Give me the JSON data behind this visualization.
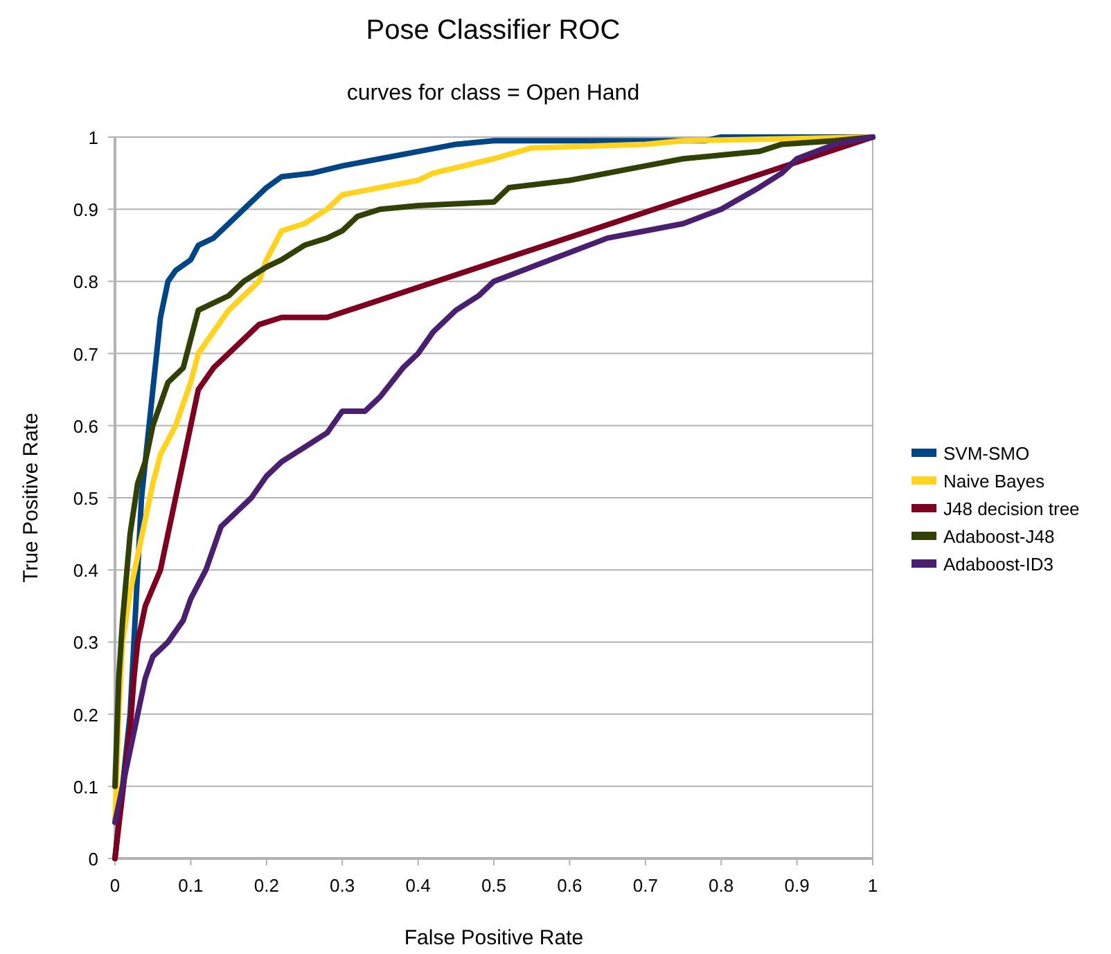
{
  "chart_data": {
    "type": "line",
    "title": "Pose Classifier ROC",
    "subtitle": "curves for class = Open Hand",
    "xlabel": "False Positive Rate",
    "ylabel": "True Positive Rate",
    "xlim": [
      0,
      1
    ],
    "ylim": [
      0,
      1
    ],
    "xticks": [
      0,
      0.1,
      0.2,
      0.3,
      0.4,
      0.5,
      0.6,
      0.7,
      0.8,
      0.9,
      1
    ],
    "yticks": [
      0,
      0.1,
      0.2,
      0.3,
      0.4,
      0.5,
      0.6,
      0.7,
      0.8,
      0.9,
      1
    ],
    "grid": "y",
    "legend": "right",
    "line_style": "solid",
    "marker": "none",
    "series": [
      {
        "name": "SVM-SMO",
        "color": "#004586",
        "x": [
          0,
          0.005,
          0.01,
          0.015,
          0.02,
          0.025,
          0.03,
          0.035,
          0.04,
          0.045,
          0.05,
          0.055,
          0.06,
          0.07,
          0.08,
          0.1,
          0.11,
          0.13,
          0.15,
          0.17,
          0.2,
          0.22,
          0.26,
          0.3,
          0.35,
          0.4,
          0.45,
          0.5,
          0.78,
          0.8,
          1
        ],
        "values": [
          0,
          0.05,
          0.1,
          0.15,
          0.2,
          0.3,
          0.4,
          0.5,
          0.55,
          0.6,
          0.65,
          0.7,
          0.75,
          0.8,
          0.815,
          0.83,
          0.85,
          0.86,
          0.88,
          0.9,
          0.93,
          0.945,
          0.95,
          0.96,
          0.97,
          0.98,
          0.99,
          0.995,
          0.995,
          1,
          1
        ]
      },
      {
        "name": "Naive Bayes",
        "color": "#ffd320",
        "x": [
          0,
          0.005,
          0.01,
          0.02,
          0.03,
          0.04,
          0.05,
          0.06,
          0.08,
          0.1,
          0.11,
          0.13,
          0.15,
          0.17,
          0.19,
          0.2,
          0.22,
          0.25,
          0.28,
          0.3,
          0.35,
          0.4,
          0.42,
          0.5,
          0.55,
          0.7,
          0.75,
          1
        ],
        "values": [
          0.05,
          0.2,
          0.3,
          0.37,
          0.42,
          0.47,
          0.52,
          0.56,
          0.6,
          0.66,
          0.7,
          0.73,
          0.76,
          0.78,
          0.8,
          0.83,
          0.87,
          0.88,
          0.9,
          0.92,
          0.93,
          0.94,
          0.95,
          0.97,
          0.985,
          0.99,
          0.995,
          1
        ]
      },
      {
        "name": "J48 decision tree",
        "color": "#7e0021",
        "x": [
          0,
          0.02,
          0.025,
          0.03,
          0.04,
          0.06,
          0.07,
          0.08,
          0.09,
          0.1,
          0.11,
          0.13,
          0.15,
          0.17,
          0.19,
          0.22,
          0.28,
          1
        ],
        "values": [
          0,
          0.18,
          0.25,
          0.3,
          0.35,
          0.4,
          0.45,
          0.5,
          0.55,
          0.6,
          0.65,
          0.68,
          0.7,
          0.72,
          0.74,
          0.75,
          0.75,
          1
        ]
      },
      {
        "name": "Adaboost-J48",
        "color": "#314004",
        "x": [
          0,
          0.005,
          0.01,
          0.02,
          0.03,
          0.04,
          0.05,
          0.06,
          0.07,
          0.09,
          0.1,
          0.11,
          0.13,
          0.15,
          0.17,
          0.2,
          0.22,
          0.25,
          0.28,
          0.3,
          0.32,
          0.35,
          0.4,
          0.5,
          0.52,
          0.6,
          0.7,
          0.75,
          0.8,
          0.85,
          0.88,
          0.95,
          1
        ],
        "values": [
          0.1,
          0.25,
          0.33,
          0.45,
          0.52,
          0.55,
          0.6,
          0.63,
          0.66,
          0.68,
          0.72,
          0.76,
          0.77,
          0.78,
          0.8,
          0.82,
          0.83,
          0.85,
          0.86,
          0.87,
          0.89,
          0.9,
          0.905,
          0.91,
          0.93,
          0.94,
          0.96,
          0.97,
          0.975,
          0.98,
          0.99,
          0.995,
          1
        ]
      },
      {
        "name": "Adaboost-ID3",
        "color": "#4b1f6f",
        "x": [
          0,
          0.01,
          0.02,
          0.03,
          0.04,
          0.05,
          0.07,
          0.09,
          0.1,
          0.12,
          0.14,
          0.16,
          0.18,
          0.2,
          0.22,
          0.25,
          0.28,
          0.3,
          0.33,
          0.35,
          0.38,
          0.4,
          0.42,
          0.45,
          0.48,
          0.5,
          0.55,
          0.6,
          0.65,
          0.7,
          0.75,
          0.8,
          0.85,
          0.88,
          0.9,
          0.95,
          1
        ],
        "values": [
          0.05,
          0.1,
          0.15,
          0.2,
          0.25,
          0.28,
          0.3,
          0.33,
          0.36,
          0.4,
          0.46,
          0.48,
          0.5,
          0.53,
          0.55,
          0.57,
          0.59,
          0.62,
          0.62,
          0.64,
          0.68,
          0.7,
          0.73,
          0.76,
          0.78,
          0.8,
          0.82,
          0.84,
          0.86,
          0.87,
          0.88,
          0.9,
          0.93,
          0.95,
          0.97,
          0.99,
          1
        ]
      }
    ]
  }
}
